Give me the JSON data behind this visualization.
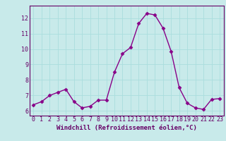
{
  "x": [
    0,
    1,
    2,
    3,
    4,
    5,
    6,
    7,
    8,
    9,
    10,
    11,
    12,
    13,
    14,
    15,
    16,
    17,
    18,
    19,
    20,
    21,
    22,
    23
  ],
  "y": [
    6.4,
    6.6,
    7.0,
    7.2,
    7.4,
    6.6,
    6.2,
    6.3,
    6.7,
    6.7,
    8.5,
    9.7,
    10.1,
    11.65,
    12.3,
    12.2,
    11.35,
    9.85,
    7.5,
    6.5,
    6.2,
    6.1,
    6.75,
    6.8
  ],
  "line_color": "#880088",
  "marker": "D",
  "marker_size": 2.5,
  "linewidth": 1.0,
  "xlabel": "Windchill (Refroidissement éolien,°C)",
  "xlim": [
    -0.5,
    23.5
  ],
  "ylim": [
    5.7,
    12.8
  ],
  "yticks": [
    6,
    7,
    8,
    9,
    10,
    11,
    12
  ],
  "xticks": [
    0,
    1,
    2,
    3,
    4,
    5,
    6,
    7,
    8,
    9,
    10,
    11,
    12,
    13,
    14,
    15,
    16,
    17,
    18,
    19,
    20,
    21,
    22,
    23
  ],
  "bg_color": "#c8eaea",
  "grid_color": "#aadddd",
  "spine_color": "#660066",
  "tick_color": "#660066",
  "label_color": "#660066",
  "xlabel_fontsize": 6.5,
  "tick_fontsize": 6.0
}
